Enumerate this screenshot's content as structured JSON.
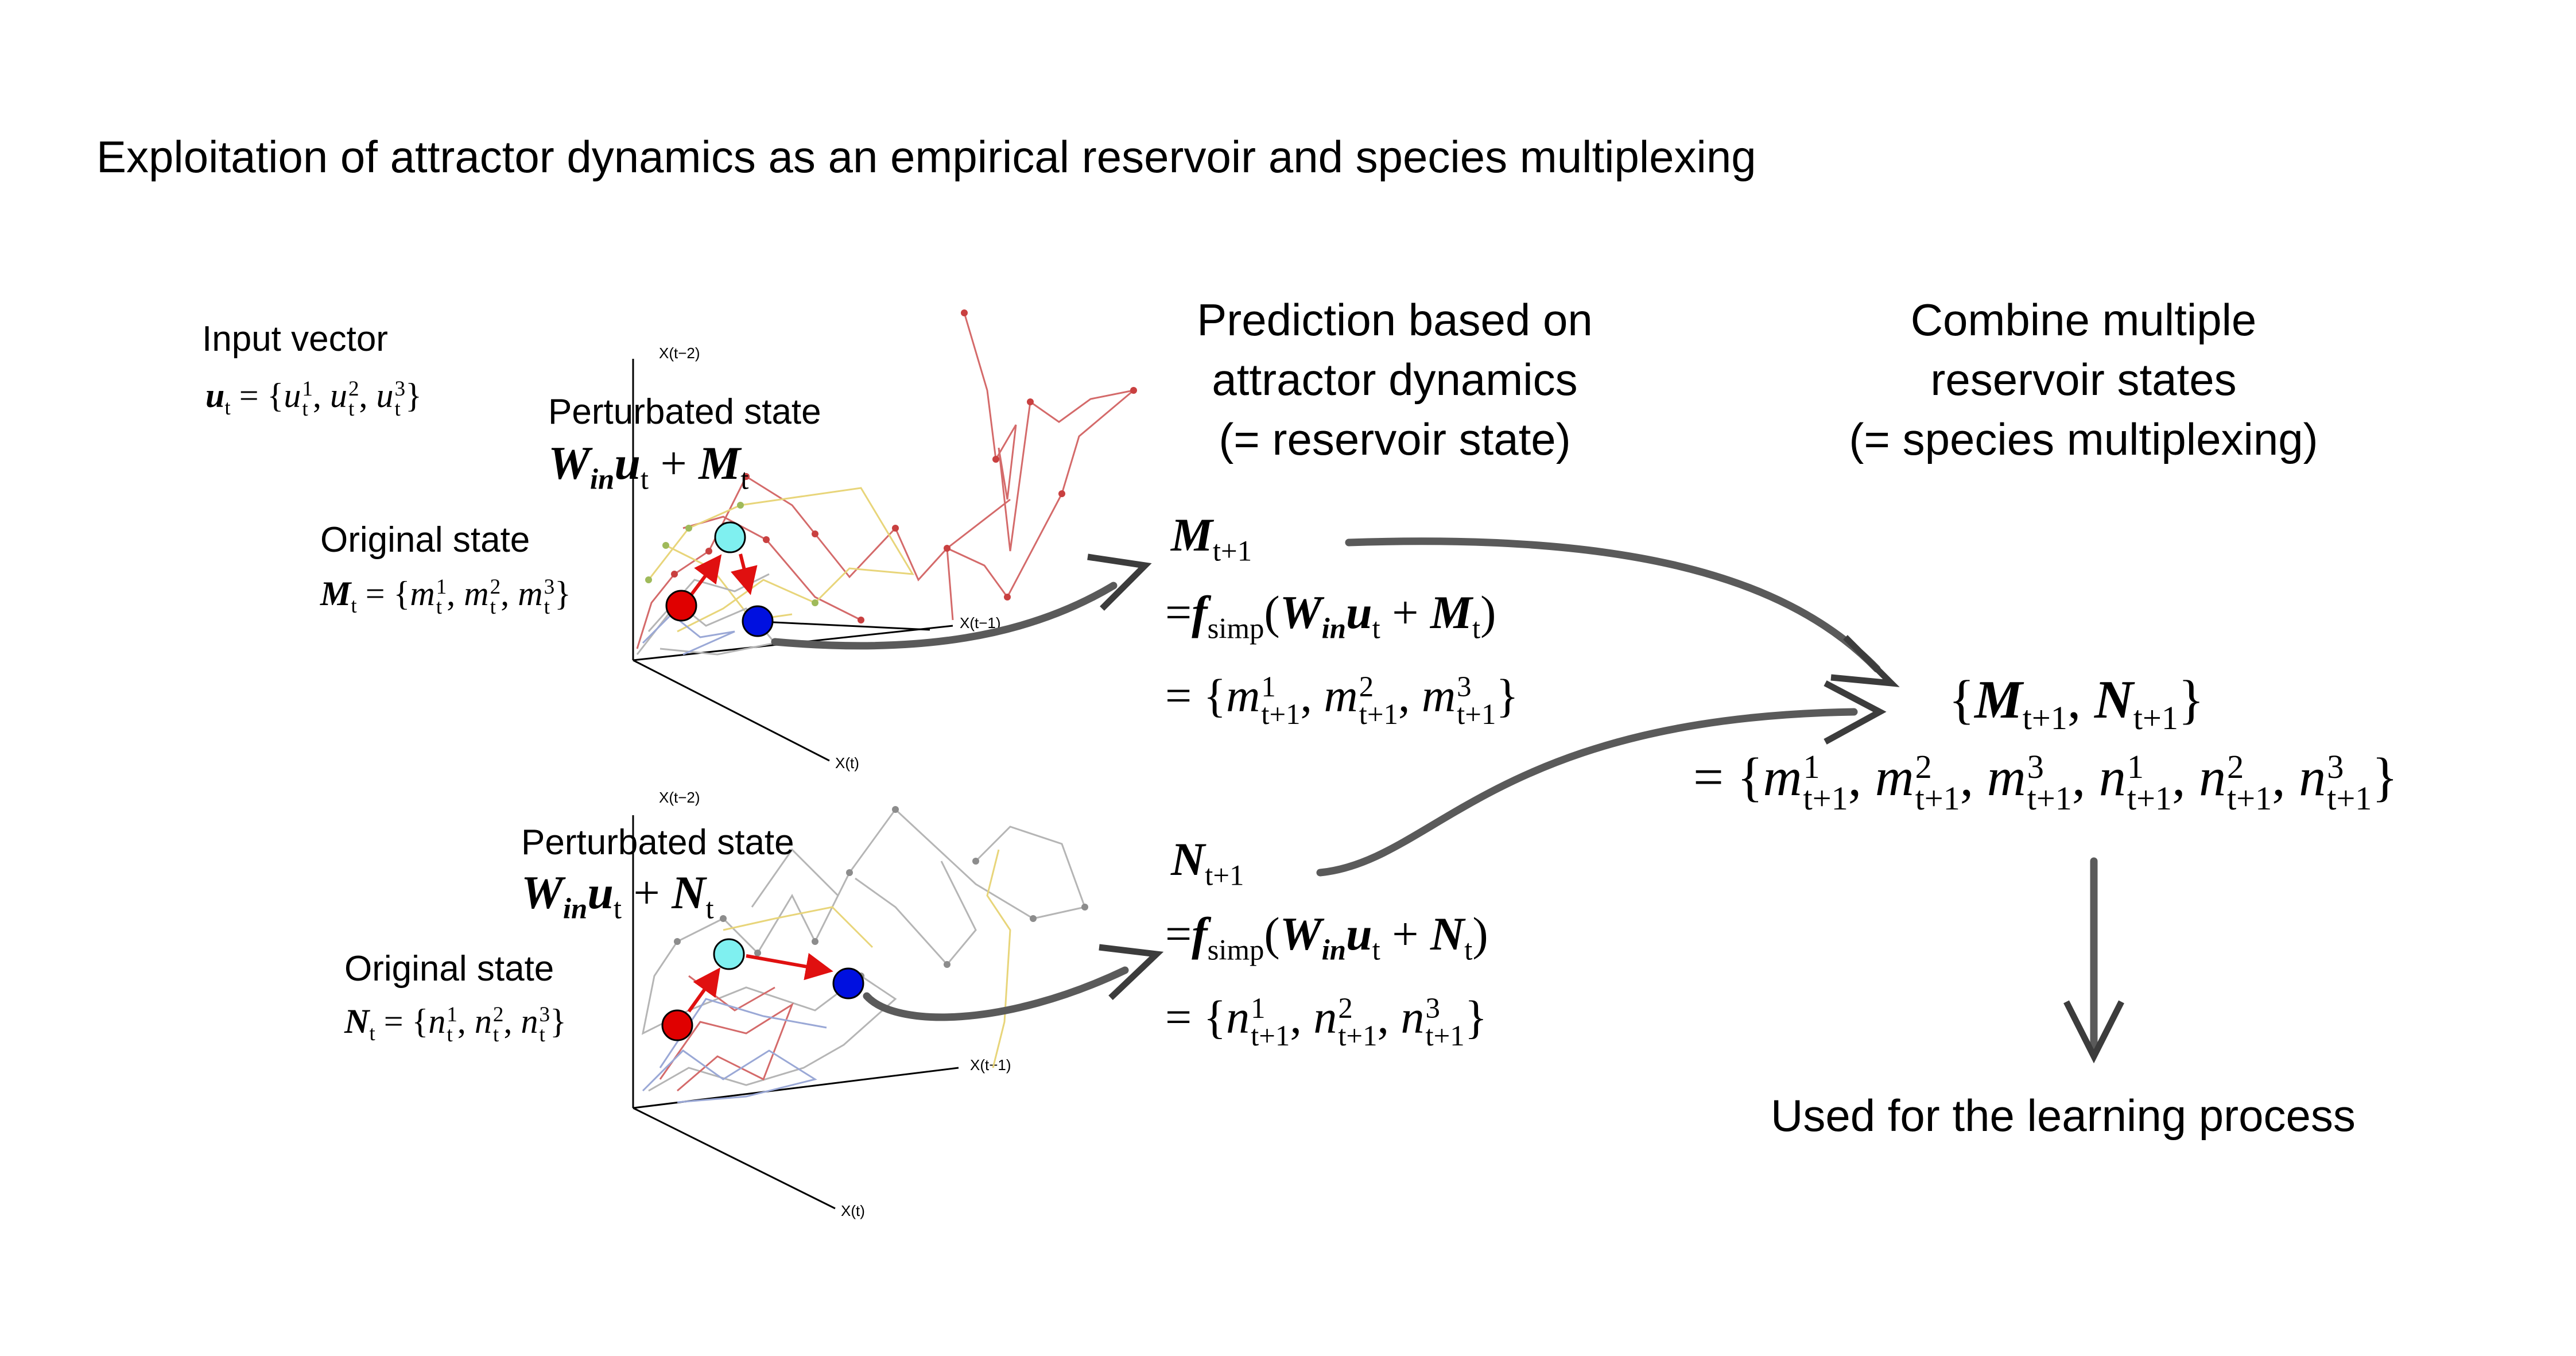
{
  "title": "Exploitation of attractor dynamics as an empirical reservoir and species multiplexing",
  "headers": {
    "prediction": [
      "Prediction based on",
      "attractor dynamics",
      "(= reservoir state)"
    ],
    "combine": [
      "Combine multiple",
      "reservoir states",
      "(= species multiplexing)"
    ]
  },
  "labels": {
    "input_vector": "Input vector",
    "perturbated_state_m": "Perturbated state",
    "original_state_m": "Original state",
    "perturbated_state_n": "Perturbated state",
    "original_state_n": "Original state",
    "learning": "Used for the learning process"
  },
  "axis_labels": {
    "m_x_t2": "X(t−2)",
    "m_x_t1": "X(t−1)",
    "m_x_t": "X(t)",
    "n_x_t2": "X(t−2)",
    "n_x_t1": "X(t−1)",
    "n_x_t": "X(t)"
  },
  "colors": {
    "original_point": "#e00000",
    "perturbated_point": "#7ff0f0",
    "predicted_point": "#0010e0",
    "arrow_red": "#e01010",
    "flow_arrow": "#5a5a5a",
    "attractor_red": "#d46a6a",
    "attractor_yellow": "#e8d57a",
    "attractor_gray": "#b5b5b5",
    "attractor_blue": "#9aa8d6"
  }
}
